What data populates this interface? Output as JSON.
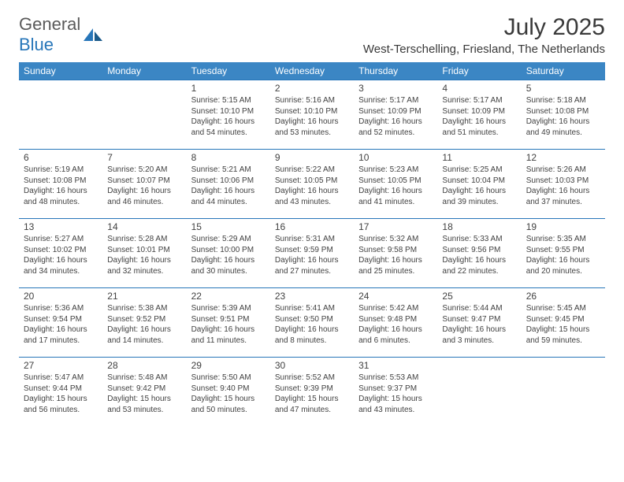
{
  "logo": {
    "general": "General",
    "blue": "Blue"
  },
  "title": "July 2025",
  "location": "West-Terschelling, Friesland, The Netherlands",
  "colors": {
    "header_bg": "#3b86c4",
    "header_text": "#ffffff",
    "border": "#2776b9",
    "text": "#414141",
    "logo_general": "#5a5a5a",
    "logo_blue": "#2776b9"
  },
  "day_headers": [
    "Sunday",
    "Monday",
    "Tuesday",
    "Wednesday",
    "Thursday",
    "Friday",
    "Saturday"
  ],
  "weeks": [
    [
      null,
      null,
      {
        "n": "1",
        "sr": "5:15 AM",
        "ss": "10:10 PM",
        "dl": "16 hours and 54 minutes."
      },
      {
        "n": "2",
        "sr": "5:16 AM",
        "ss": "10:10 PM",
        "dl": "16 hours and 53 minutes."
      },
      {
        "n": "3",
        "sr": "5:17 AM",
        "ss": "10:09 PM",
        "dl": "16 hours and 52 minutes."
      },
      {
        "n": "4",
        "sr": "5:17 AM",
        "ss": "10:09 PM",
        "dl": "16 hours and 51 minutes."
      },
      {
        "n": "5",
        "sr": "5:18 AM",
        "ss": "10:08 PM",
        "dl": "16 hours and 49 minutes."
      }
    ],
    [
      {
        "n": "6",
        "sr": "5:19 AM",
        "ss": "10:08 PM",
        "dl": "16 hours and 48 minutes."
      },
      {
        "n": "7",
        "sr": "5:20 AM",
        "ss": "10:07 PM",
        "dl": "16 hours and 46 minutes."
      },
      {
        "n": "8",
        "sr": "5:21 AM",
        "ss": "10:06 PM",
        "dl": "16 hours and 44 minutes."
      },
      {
        "n": "9",
        "sr": "5:22 AM",
        "ss": "10:05 PM",
        "dl": "16 hours and 43 minutes."
      },
      {
        "n": "10",
        "sr": "5:23 AM",
        "ss": "10:05 PM",
        "dl": "16 hours and 41 minutes."
      },
      {
        "n": "11",
        "sr": "5:25 AM",
        "ss": "10:04 PM",
        "dl": "16 hours and 39 minutes."
      },
      {
        "n": "12",
        "sr": "5:26 AM",
        "ss": "10:03 PM",
        "dl": "16 hours and 37 minutes."
      }
    ],
    [
      {
        "n": "13",
        "sr": "5:27 AM",
        "ss": "10:02 PM",
        "dl": "16 hours and 34 minutes."
      },
      {
        "n": "14",
        "sr": "5:28 AM",
        "ss": "10:01 PM",
        "dl": "16 hours and 32 minutes."
      },
      {
        "n": "15",
        "sr": "5:29 AM",
        "ss": "10:00 PM",
        "dl": "16 hours and 30 minutes."
      },
      {
        "n": "16",
        "sr": "5:31 AM",
        "ss": "9:59 PM",
        "dl": "16 hours and 27 minutes."
      },
      {
        "n": "17",
        "sr": "5:32 AM",
        "ss": "9:58 PM",
        "dl": "16 hours and 25 minutes."
      },
      {
        "n": "18",
        "sr": "5:33 AM",
        "ss": "9:56 PM",
        "dl": "16 hours and 22 minutes."
      },
      {
        "n": "19",
        "sr": "5:35 AM",
        "ss": "9:55 PM",
        "dl": "16 hours and 20 minutes."
      }
    ],
    [
      {
        "n": "20",
        "sr": "5:36 AM",
        "ss": "9:54 PM",
        "dl": "16 hours and 17 minutes."
      },
      {
        "n": "21",
        "sr": "5:38 AM",
        "ss": "9:52 PM",
        "dl": "16 hours and 14 minutes."
      },
      {
        "n": "22",
        "sr": "5:39 AM",
        "ss": "9:51 PM",
        "dl": "16 hours and 11 minutes."
      },
      {
        "n": "23",
        "sr": "5:41 AM",
        "ss": "9:50 PM",
        "dl": "16 hours and 8 minutes."
      },
      {
        "n": "24",
        "sr": "5:42 AM",
        "ss": "9:48 PM",
        "dl": "16 hours and 6 minutes."
      },
      {
        "n": "25",
        "sr": "5:44 AM",
        "ss": "9:47 PM",
        "dl": "16 hours and 3 minutes."
      },
      {
        "n": "26",
        "sr": "5:45 AM",
        "ss": "9:45 PM",
        "dl": "15 hours and 59 minutes."
      }
    ],
    [
      {
        "n": "27",
        "sr": "5:47 AM",
        "ss": "9:44 PM",
        "dl": "15 hours and 56 minutes."
      },
      {
        "n": "28",
        "sr": "5:48 AM",
        "ss": "9:42 PM",
        "dl": "15 hours and 53 minutes."
      },
      {
        "n": "29",
        "sr": "5:50 AM",
        "ss": "9:40 PM",
        "dl": "15 hours and 50 minutes."
      },
      {
        "n": "30",
        "sr": "5:52 AM",
        "ss": "9:39 PM",
        "dl": "15 hours and 47 minutes."
      },
      {
        "n": "31",
        "sr": "5:53 AM",
        "ss": "9:37 PM",
        "dl": "15 hours and 43 minutes."
      },
      null,
      null
    ]
  ],
  "labels": {
    "sunrise": "Sunrise:",
    "sunset": "Sunset:",
    "daylight": "Daylight:"
  }
}
